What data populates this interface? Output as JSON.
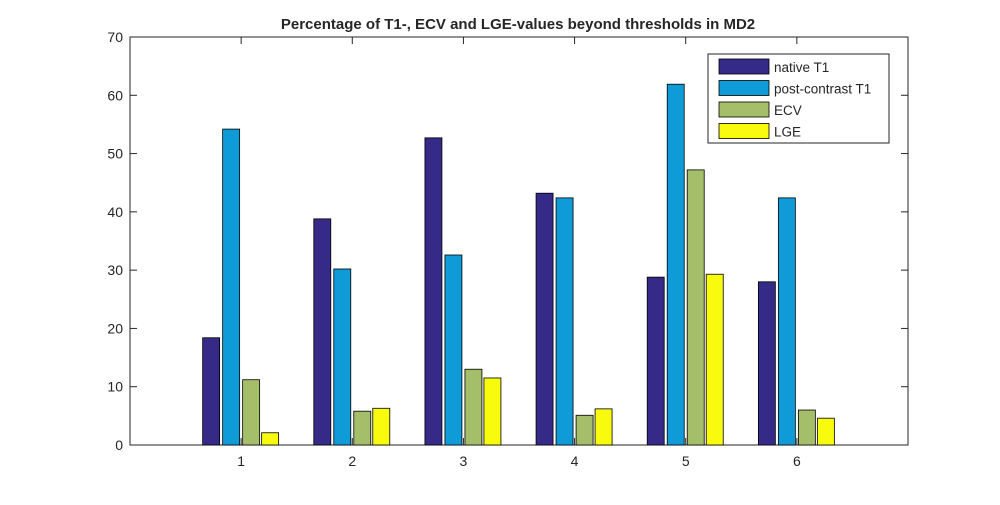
{
  "chart_data": {
    "type": "bar",
    "title": "Percentage of T1-, ECV and LGE-values beyond thresholds in MD2",
    "xlabel": "",
    "ylabel": "",
    "categories": [
      "1",
      "2",
      "3",
      "4",
      "5",
      "6"
    ],
    "xlim": [
      0,
      7
    ],
    "ylim": [
      0,
      70
    ],
    "yticks": [
      "0",
      "10",
      "20",
      "30",
      "40",
      "50",
      "60",
      "70"
    ],
    "grid": false,
    "legend_position": "top-right",
    "series": [
      {
        "name": "native T1",
        "color": "#352a87",
        "values": [
          18.4,
          38.8,
          52.7,
          43.2,
          28.8,
          28.0
        ]
      },
      {
        "name": "post-contrast T1",
        "color": "#0f9bd7",
        "values": [
          54.2,
          30.2,
          32.6,
          42.4,
          61.9,
          42.4
        ]
      },
      {
        "name": "ECV",
        "color": "#a5be6a",
        "values": [
          11.2,
          5.8,
          13.0,
          5.1,
          47.2,
          6.0
        ]
      },
      {
        "name": "LGE",
        "color": "#f9fb0e",
        "values": [
          2.1,
          6.3,
          11.5,
          6.2,
          29.3,
          4.6
        ]
      }
    ]
  }
}
